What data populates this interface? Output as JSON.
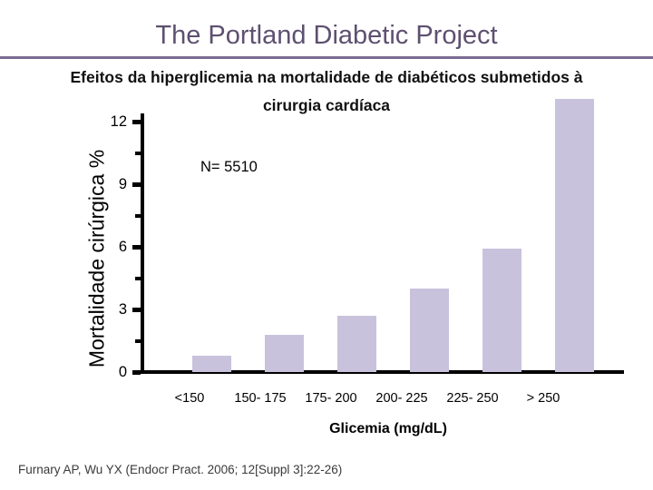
{
  "slide": {
    "title": "The Portland Diabetic Project",
    "subtitle_line1": "Efeitos da hiperglicemia na mortalidade de diabéticos submetidos à",
    "subtitle_line2": "cirurgia cardíaca",
    "citation": "Furnary AP, Wu YX (Endocr Pract. 2006; 12[Suppl 3]:22-26)",
    "colors": {
      "title": "#5e5070",
      "divider": "#7b6c93",
      "bar": "#c9c2dc",
      "axis": "#000000"
    }
  },
  "chart_data": {
    "type": "bar",
    "categories": [
      "<150",
      "150- 175",
      "175- 200",
      "200- 225",
      "225- 250",
      "> 250"
    ],
    "values": [
      0.8,
      1.8,
      2.7,
      4.0,
      5.9,
      13.1
    ],
    "title": "",
    "xlabel": "Glicemia (mg/dL)",
    "ylabel": "Mortalidade cirúrgica %",
    "annotation": "N= 5510",
    "yticks": [
      0,
      3,
      6,
      9,
      12
    ],
    "ylim": [
      0,
      12
    ],
    "grid": false,
    "legend": false
  }
}
